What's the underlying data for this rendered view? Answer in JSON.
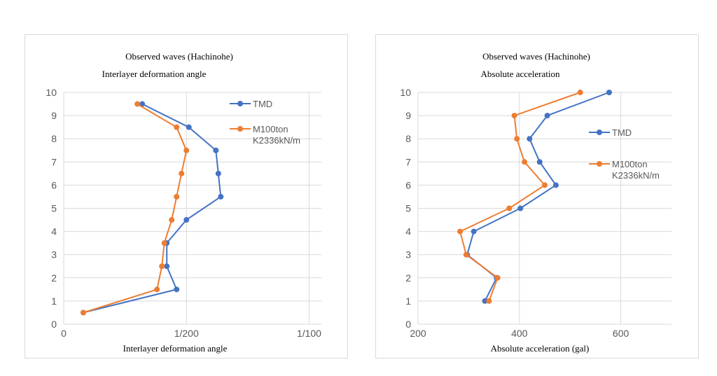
{
  "colors": {
    "series_tmd": "#4472c4",
    "series_m100": "#ed7d31",
    "grid": "#d9d9d9",
    "text": "#595959"
  },
  "chart_data": [
    {
      "type": "line",
      "title": "Observed waves (Hachinohe)",
      "subtitle": "Interlayer deformation angle",
      "xlabel": "Interlayer deformation angle",
      "ylabel": "",
      "xlim": [
        0,
        0.0105
      ],
      "ylim": [
        0,
        10
      ],
      "xticks": [
        {
          "v": 0,
          "label": "0"
        },
        {
          "v": 0.005,
          "label": "1/200"
        },
        {
          "v": 0.01,
          "label": "1/100"
        }
      ],
      "yticks": [
        "0",
        "1",
        "2",
        "3",
        "4",
        "5",
        "6",
        "7",
        "8",
        "9",
        "10"
      ],
      "legend_position": "top-right",
      "series": [
        {
          "name": "TMD",
          "color": "#4472c4",
          "legend_lines": [
            "TMD"
          ],
          "points": [
            [
              0.0008,
              0.5
            ],
            [
              0.0046,
              1.5
            ],
            [
              0.0042,
              2.5
            ],
            [
              0.0042,
              3.5
            ],
            [
              0.005,
              4.5
            ],
            [
              0.0064,
              5.5
            ],
            [
              0.0063,
              6.5
            ],
            [
              0.0062,
              7.5
            ],
            [
              0.0051,
              8.5
            ],
            [
              0.0032,
              9.5
            ]
          ]
        },
        {
          "name": "M100ton K2336kN/m",
          "color": "#ed7d31",
          "legend_lines": [
            "M100ton",
            "K2336kN/m"
          ],
          "points": [
            [
              0.0008,
              0.5
            ],
            [
              0.0038,
              1.5
            ],
            [
              0.004,
              2.5
            ],
            [
              0.0041,
              3.5
            ],
            [
              0.0044,
              4.5
            ],
            [
              0.0046,
              5.5
            ],
            [
              0.0048,
              6.5
            ],
            [
              0.005,
              7.5
            ],
            [
              0.0046,
              8.5
            ],
            [
              0.003,
              9.5
            ]
          ]
        }
      ]
    },
    {
      "type": "line",
      "title": "Observed waves (Hachinohe)",
      "subtitle": "Absolute acceleration",
      "xlabel": "Absolute acceleration (gal)",
      "ylabel": "",
      "xlim": [
        200,
        700
      ],
      "ylim": [
        0,
        10
      ],
      "xticks": [
        {
          "v": 200,
          "label": "200"
        },
        {
          "v": 400,
          "label": "400"
        },
        {
          "v": 600,
          "label": "600"
        }
      ],
      "yticks": [
        "0",
        "1",
        "2",
        "3",
        "4",
        "5",
        "6",
        "7",
        "8",
        "9",
        "10"
      ],
      "legend_position": "right",
      "series": [
        {
          "name": "TMD",
          "color": "#4472c4",
          "legend_lines": [
            "TMD"
          ],
          "points": [
            [
              332,
              1
            ],
            [
              355,
              2
            ],
            [
              297,
              3
            ],
            [
              310,
              4
            ],
            [
              402,
              5
            ],
            [
              472,
              6
            ],
            [
              440,
              7
            ],
            [
              420,
              8
            ],
            [
              455,
              9
            ],
            [
              577,
              10
            ]
          ]
        },
        {
          "name": "M100ton K2336kN/m",
          "color": "#ed7d31",
          "legend_lines": [
            "M100ton",
            "K2336kN/m"
          ],
          "points": [
            [
              340,
              1
            ],
            [
              357,
              2
            ],
            [
              295,
              3
            ],
            [
              283,
              4
            ],
            [
              380,
              5
            ],
            [
              450,
              6
            ],
            [
              410,
              7
            ],
            [
              395,
              8
            ],
            [
              390,
              9
            ],
            [
              520,
              10
            ]
          ]
        }
      ]
    }
  ]
}
